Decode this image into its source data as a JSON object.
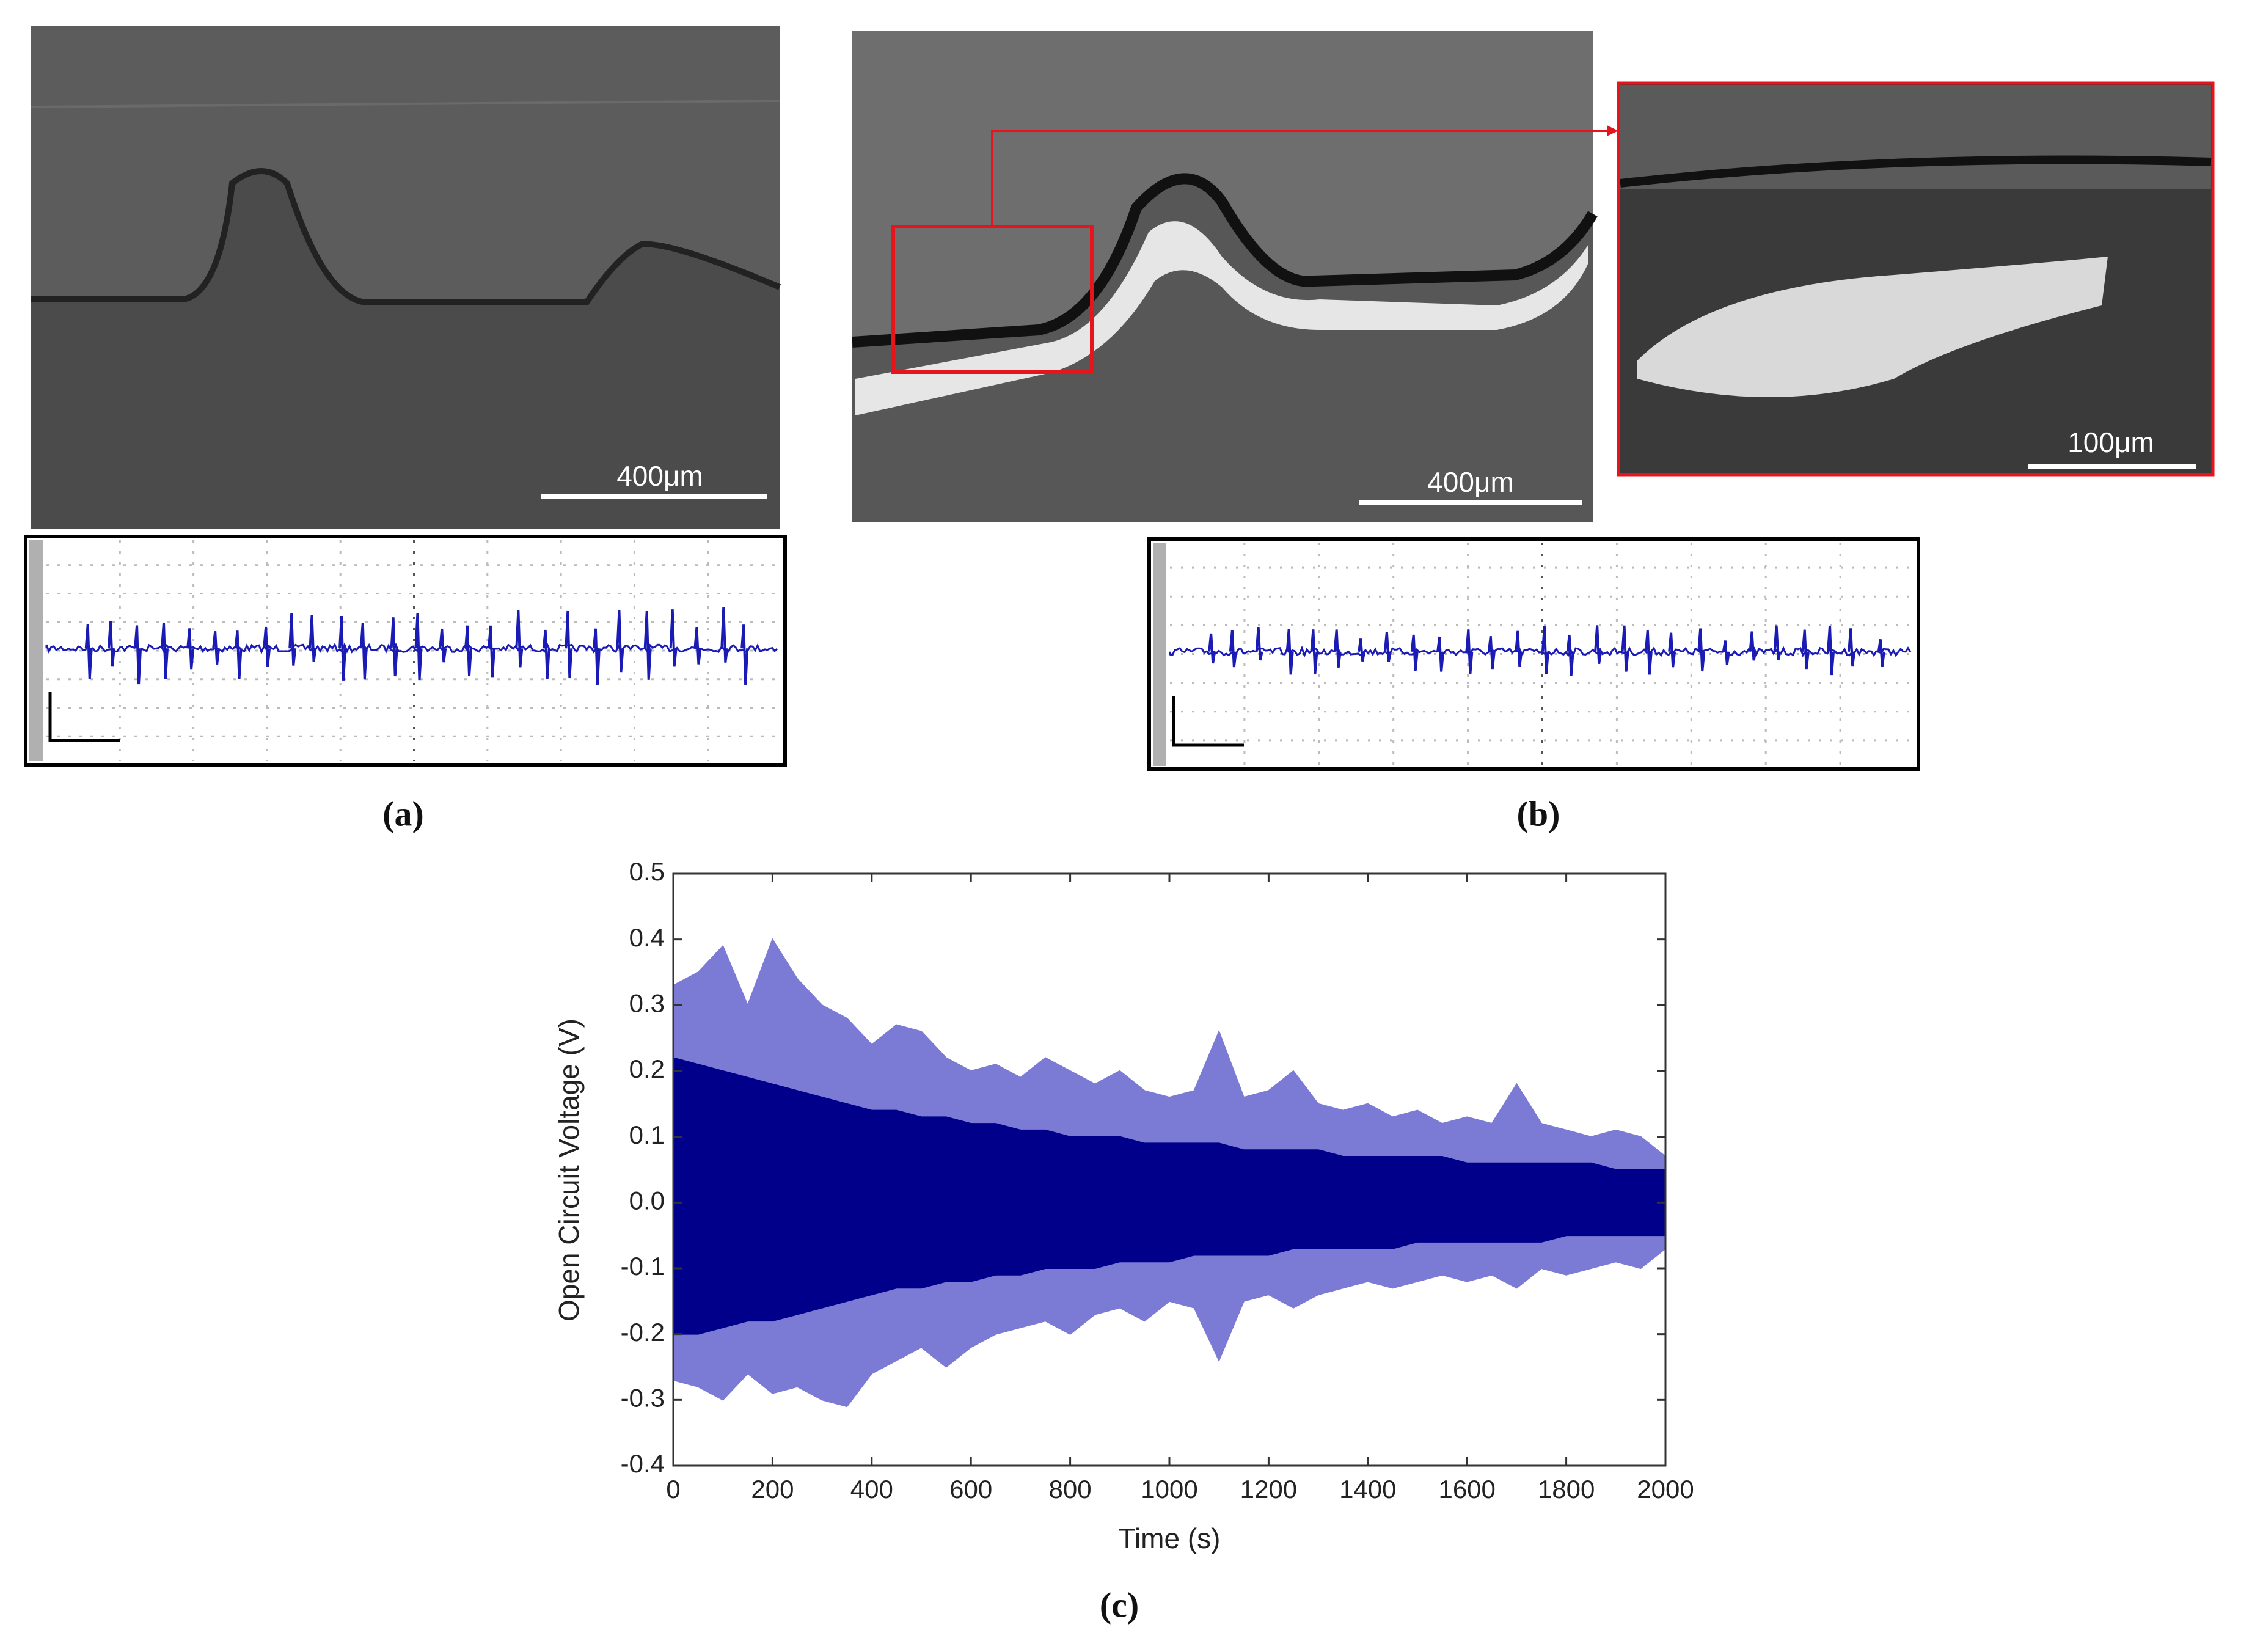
{
  "panels": [
    {
      "label": "(a)",
      "scale_bar": "400μm"
    },
    {
      "label": "(b)",
      "scale_bar": "400μm",
      "inset_scale_bar": "100μm"
    }
  ],
  "chart_data": {
    "type": "area",
    "label": "(c)",
    "xlabel": "Time (s)",
    "ylabel": "Open Circuit Voltage (V)",
    "x": [
      0,
      50,
      100,
      150,
      200,
      250,
      300,
      350,
      400,
      450,
      500,
      550,
      600,
      650,
      700,
      750,
      800,
      850,
      900,
      950,
      1000,
      1050,
      1100,
      1150,
      1200,
      1250,
      1300,
      1350,
      1400,
      1450,
      1500,
      1550,
      1600,
      1650,
      1700,
      1750,
      1800,
      1850,
      1900,
      1950,
      2000
    ],
    "series": [
      {
        "color": "#7b7bd6",
        "values": [
          0.33,
          0.35,
          0.39,
          0.3,
          0.4,
          0.34,
          0.3,
          0.28,
          0.24,
          0.27,
          0.26,
          0.22,
          0.2,
          0.21,
          0.19,
          0.22,
          0.2,
          0.18,
          0.2,
          0.17,
          0.16,
          0.17,
          0.26,
          0.16,
          0.17,
          0.2,
          0.15,
          0.14,
          0.15,
          0.13,
          0.14,
          0.12,
          0.13,
          0.12,
          0.18,
          0.12,
          0.11,
          0.1,
          0.11,
          0.1,
          0.07
        ]
      },
      {
        "color": "#7b7bd6",
        "values": [
          -0.27,
          -0.28,
          -0.3,
          -0.26,
          -0.29,
          -0.28,
          -0.3,
          -0.31,
          -0.26,
          -0.24,
          -0.22,
          -0.25,
          -0.22,
          -0.2,
          -0.19,
          -0.18,
          -0.2,
          -0.17,
          -0.16,
          -0.18,
          -0.15,
          -0.16,
          -0.24,
          -0.15,
          -0.14,
          -0.16,
          -0.14,
          -0.13,
          -0.12,
          -0.13,
          -0.12,
          -0.11,
          -0.12,
          -0.11,
          -0.13,
          -0.1,
          -0.11,
          -0.1,
          -0.09,
          -0.1,
          -0.07
        ]
      },
      {
        "color": "#00008b",
        "values": [
          0.22,
          0.21,
          0.2,
          0.19,
          0.18,
          0.17,
          0.16,
          0.15,
          0.14,
          0.14,
          0.13,
          0.13,
          0.12,
          0.12,
          0.11,
          0.11,
          0.1,
          0.1,
          0.1,
          0.09,
          0.09,
          0.09,
          0.09,
          0.08,
          0.08,
          0.08,
          0.08,
          0.07,
          0.07,
          0.07,
          0.07,
          0.07,
          0.06,
          0.06,
          0.06,
          0.06,
          0.06,
          0.06,
          0.05,
          0.05,
          0.05
        ]
      },
      {
        "color": "#00008b",
        "values": [
          -0.2,
          -0.2,
          -0.19,
          -0.18,
          -0.18,
          -0.17,
          -0.16,
          -0.15,
          -0.14,
          -0.13,
          -0.13,
          -0.12,
          -0.12,
          -0.11,
          -0.11,
          -0.1,
          -0.1,
          -0.1,
          -0.09,
          -0.09,
          -0.09,
          -0.08,
          -0.08,
          -0.08,
          -0.08,
          -0.07,
          -0.07,
          -0.07,
          -0.07,
          -0.07,
          -0.06,
          -0.06,
          -0.06,
          -0.06,
          -0.06,
          -0.06,
          -0.05,
          -0.05,
          -0.05,
          -0.05,
          -0.05
        ]
      }
    ],
    "xlim": [
      0,
      2000
    ],
    "ylim": [
      -0.4,
      0.5
    ],
    "xticks": [
      0,
      200,
      400,
      600,
      800,
      1000,
      1200,
      1400,
      1600,
      1800,
      2000
    ],
    "yticks": [
      -0.4,
      -0.3,
      -0.2,
      -0.1,
      {
        "value": 0,
        "label": "0.0"
      },
      0.1,
      0.2,
      0.3,
      0.4,
      0.5
    ]
  }
}
